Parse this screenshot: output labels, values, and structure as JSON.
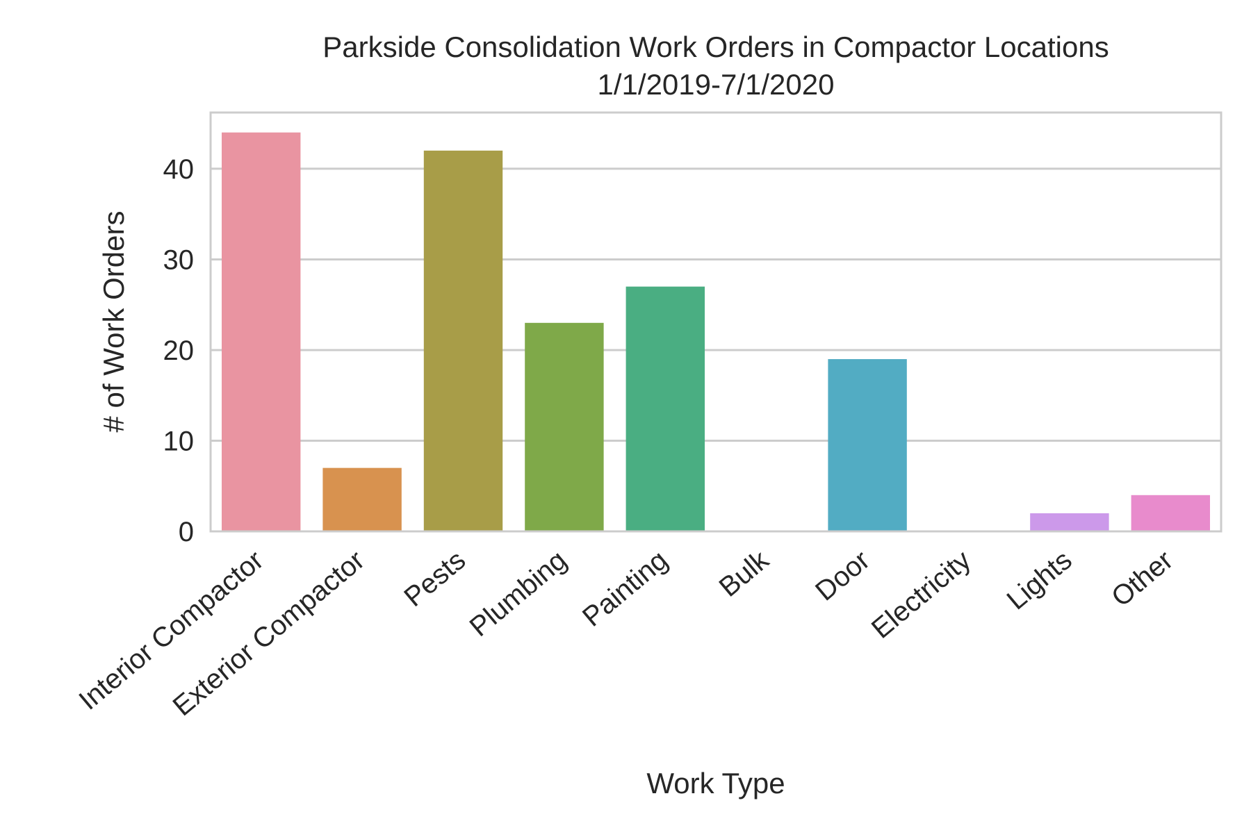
{
  "chart_data": {
    "type": "bar",
    "title_lines": [
      "Parkside Consolidation Work Orders in Compactor Locations",
      "1/1/2019-7/1/2020"
    ],
    "xlabel": "Work Type",
    "ylabel": "# of Work Orders",
    "categories": [
      "Interior Compactor",
      "Exterior Compactor",
      "Pests",
      "Plumbing",
      "Painting",
      "Bulk",
      "Door",
      "Electricity",
      "Lights",
      "Other"
    ],
    "values": [
      44,
      7,
      42,
      23,
      27,
      0,
      19,
      0,
      2,
      4
    ],
    "colors": [
      "#e994a1",
      "#d8924f",
      "#a89d48",
      "#7fa949",
      "#4aae82",
      "#4caea0",
      "#52acc3",
      "#8a9fe6",
      "#cc99ea",
      "#e88bcc"
    ],
    "yticks": [
      0,
      10,
      20,
      30,
      40
    ],
    "ylim": [
      0,
      46.2
    ],
    "grid": "horizontal",
    "legend": "none"
  }
}
